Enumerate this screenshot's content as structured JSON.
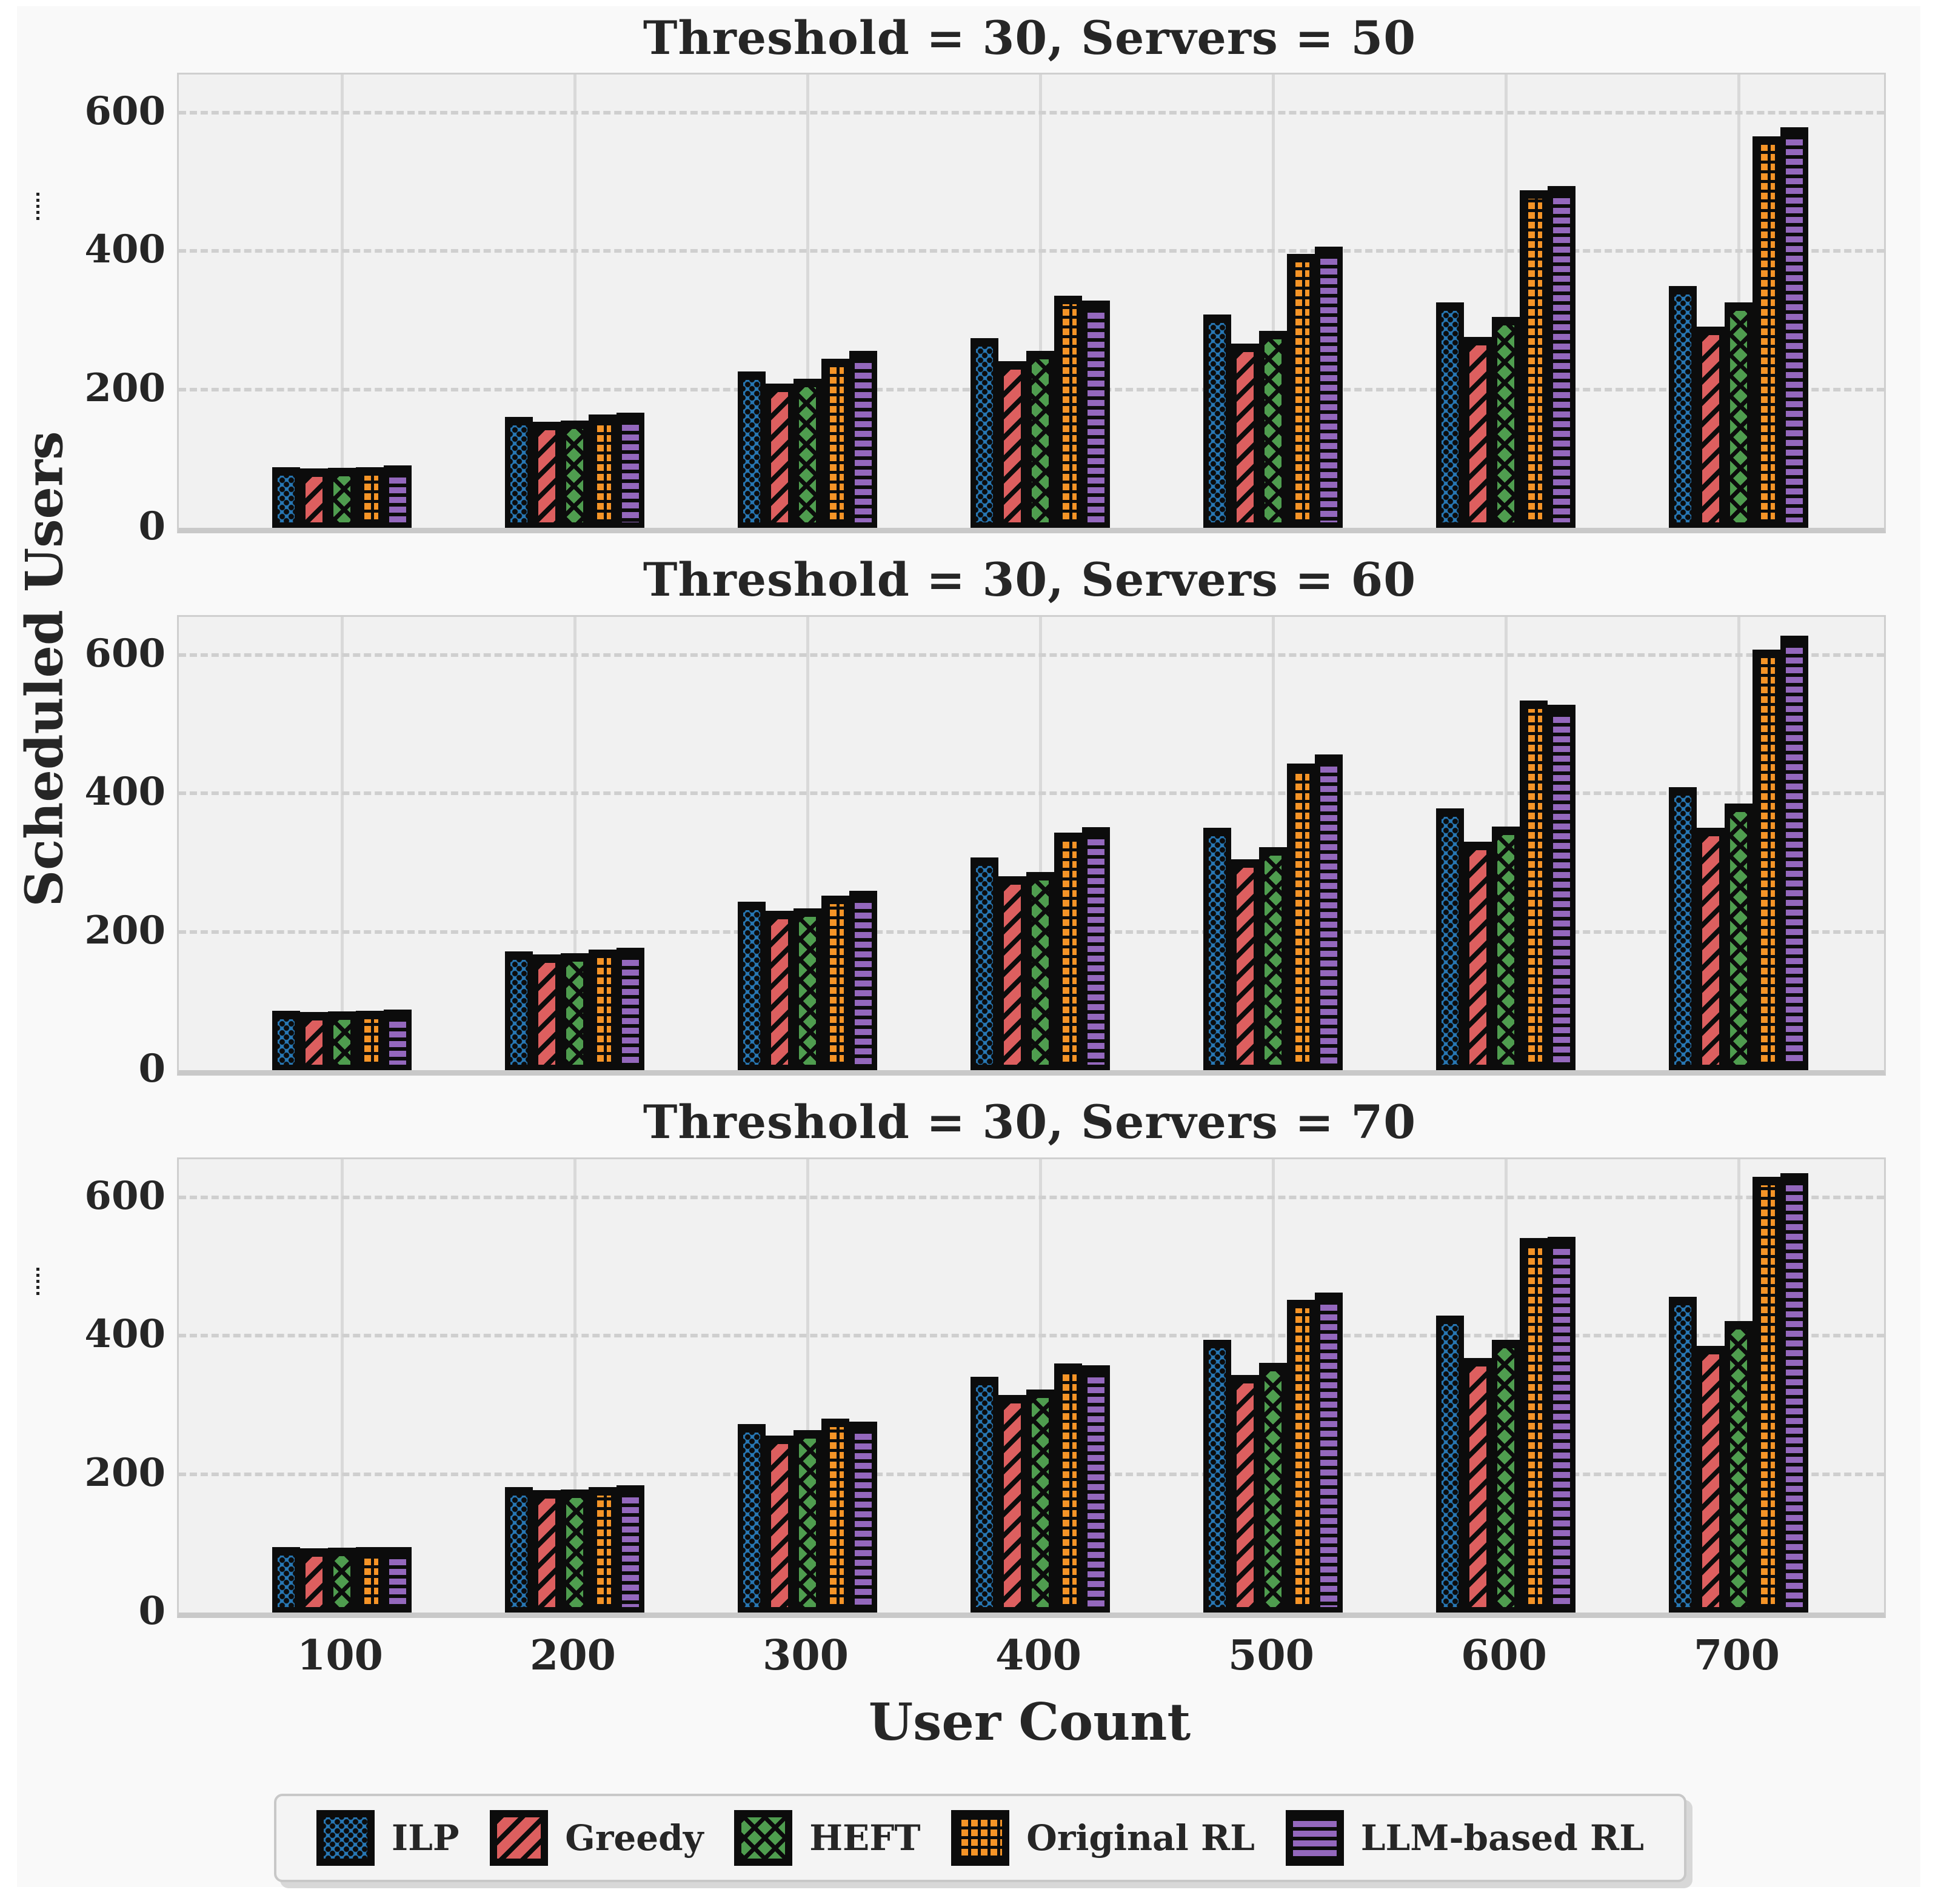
{
  "figure": {
    "ylabel": "Scheduled Users",
    "xlabel": "User Count",
    "background_color": "#f9f9f9",
    "panel_background_color": "#f1f1f1",
    "grid_color": "#cfcfcf"
  },
  "series_colors": {
    "ILP": "#2878b5",
    "Greedy": "#dd5f5f",
    "HEFT": "#4f9d4f",
    "Original RL": "#f59427",
    "LLM-based RL": "#9468bd"
  },
  "chart_data": [
    {
      "type": "bar",
      "title": "Threshold = 30, Servers = 50",
      "categories": [
        "100",
        "200",
        "300",
        "400",
        "500",
        "600",
        "700"
      ],
      "series": [
        {
          "name": "ILP",
          "values": [
            88,
            160,
            226,
            274,
            308,
            326,
            349
          ]
        },
        {
          "name": "Greedy",
          "values": [
            86,
            153,
            208,
            241,
            266,
            276,
            291
          ]
        },
        {
          "name": "HEFT",
          "values": [
            87,
            155,
            215,
            256,
            285,
            305,
            326
          ]
        },
        {
          "name": "Original RL",
          "values": [
            88,
            164,
            244,
            335,
            396,
            488,
            566
          ]
        },
        {
          "name": "LLM-based RL",
          "values": [
            90,
            166,
            256,
            328,
            406,
            494,
            579
          ]
        }
      ],
      "ylim": [
        0,
        655
      ],
      "yticks": [
        0,
        200,
        400,
        600
      ],
      "grid": "horizontal-dashed-and-vertical-solid"
    },
    {
      "type": "bar",
      "title": "Threshold = 30, Servers = 60",
      "categories": [
        "100",
        "200",
        "300",
        "400",
        "500",
        "600",
        "700"
      ],
      "series": [
        {
          "name": "ILP",
          "values": [
            86,
            172,
            243,
            307,
            350,
            378,
            409
          ]
        },
        {
          "name": "Greedy",
          "values": [
            84,
            167,
            230,
            280,
            305,
            330,
            350
          ]
        },
        {
          "name": "HEFT",
          "values": [
            85,
            169,
            234,
            286,
            322,
            352,
            385
          ]
        },
        {
          "name": "Original RL",
          "values": [
            86,
            174,
            252,
            343,
            443,
            534,
            608
          ]
        },
        {
          "name": "LLM-based RL",
          "values": [
            88,
            177,
            259,
            351,
            456,
            528,
            628
          ]
        }
      ],
      "ylim": [
        0,
        655
      ],
      "yticks": [
        0,
        200,
        400,
        600
      ],
      "grid": "horizontal-dashed-and-vertical-solid"
    },
    {
      "type": "bar",
      "title": "Threshold = 30, Servers = 70",
      "categories": [
        "100",
        "200",
        "300",
        "400",
        "500",
        "600",
        "700"
      ],
      "series": [
        {
          "name": "ILP",
          "values": [
            95,
            181,
            272,
            341,
            394,
            429,
            456
          ]
        },
        {
          "name": "Greedy",
          "values": [
            93,
            177,
            256,
            314,
            343,
            368,
            385
          ]
        },
        {
          "name": "HEFT",
          "values": [
            94,
            178,
            264,
            322,
            361,
            394,
            421
          ]
        },
        {
          "name": "Original RL",
          "values": [
            95,
            181,
            280,
            360,
            452,
            541,
            630
          ]
        },
        {
          "name": "LLM-based RL",
          "values": [
            95,
            184,
            276,
            357,
            462,
            543,
            635
          ]
        }
      ],
      "ylim": [
        0,
        655
      ],
      "yticks": [
        0,
        200,
        400,
        600
      ],
      "grid": "horizontal-dashed-and-vertical-solid"
    }
  ],
  "legend": {
    "position": "bottom-center",
    "items": [
      {
        "label": "ILP",
        "color": "#2878b5",
        "hatch": "dots"
      },
      {
        "label": "Greedy",
        "color": "#dd5f5f",
        "hatch": "diagonal-lines"
      },
      {
        "label": "HEFT",
        "color": "#4f9d4f",
        "hatch": "crosshatch"
      },
      {
        "label": "Original RL",
        "color": "#f59427",
        "hatch": "grid"
      },
      {
        "label": "LLM-based RL",
        "color": "#9468bd",
        "hatch": "horizontal-lines"
      }
    ]
  }
}
